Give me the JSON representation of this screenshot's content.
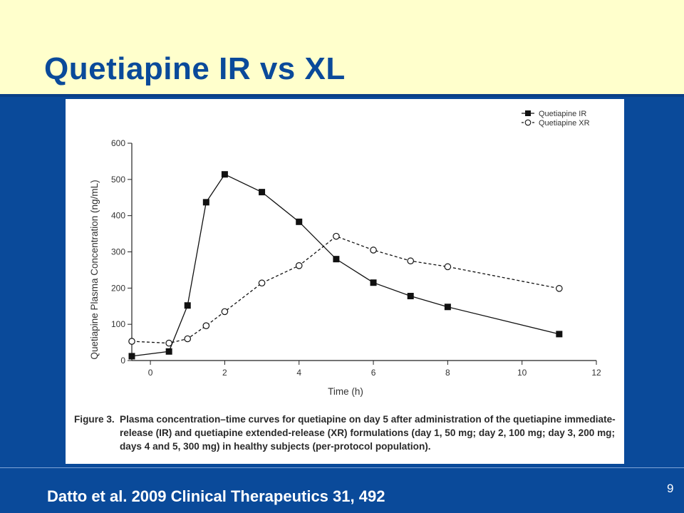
{
  "slide": {
    "title": "Quetiapine IR vs XL",
    "citation": "Datto et al. 2009 Clinical Therapeutics  31, 492",
    "page_number": "9"
  },
  "figure": {
    "caption_label": "Figure 3.",
    "caption_text": "Plasma concentration–time curves for quetiapine on day 5 after administration of the quetiapine immediate-release (IR) and quetiapine extended-release (XR) formulations (day 1, 50 mg; day 2, 100 mg; day 3, 200 mg; days 4 and 5, 300 mg) in healthy subjects (per-protocol population)."
  },
  "chart_data": {
    "type": "line",
    "xlabel": "Time (h)",
    "ylabel": "Quetiapine Plasma Concentration (ng/mL)",
    "xlim": [
      -0.5,
      12
    ],
    "ylim": [
      0,
      600
    ],
    "xticks": [
      0,
      2,
      4,
      6,
      8,
      10,
      12
    ],
    "yticks": [
      0,
      100,
      200,
      300,
      400,
      500,
      600
    ],
    "grid": false,
    "legend_position": "top-right",
    "series": [
      {
        "name": "Quetiapine IR",
        "marker": "filled-square",
        "line": "solid",
        "color": "#111111",
        "points": [
          [
            -0.5,
            12
          ],
          [
            0.5,
            25
          ],
          [
            1,
            152
          ],
          [
            1.5,
            437
          ],
          [
            2,
            514
          ],
          [
            3,
            465
          ],
          [
            4,
            383
          ],
          [
            5,
            280
          ],
          [
            6,
            215
          ],
          [
            7,
            178
          ],
          [
            8,
            148
          ],
          [
            11,
            73
          ]
        ]
      },
      {
        "name": "Quetiapine XR",
        "marker": "open-circle",
        "line": "dashed",
        "color": "#111111",
        "points": [
          [
            -0.5,
            53
          ],
          [
            0.5,
            48
          ],
          [
            1,
            60
          ],
          [
            1.5,
            96
          ],
          [
            2,
            135
          ],
          [
            3,
            214
          ],
          [
            4,
            262
          ],
          [
            5,
            343
          ],
          [
            6,
            305
          ],
          [
            7,
            275
          ],
          [
            8,
            259
          ],
          [
            11,
            199
          ]
        ]
      }
    ]
  }
}
